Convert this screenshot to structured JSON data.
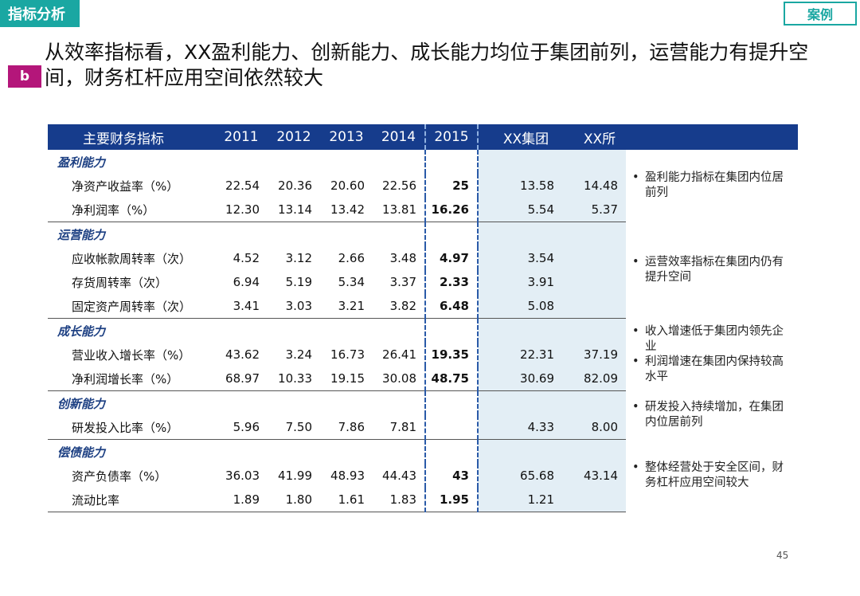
{
  "tag": "指标分析",
  "case_label": "案例",
  "badge": "b",
  "headline": "从效率指标看，XX盈利能力、创新能力、成长能力均位于集团前列，运营能力有提升空间，财务杠杆应用空间依然较大",
  "table": {
    "headers": [
      "主要财务指标",
      "2011",
      "2012",
      "2013",
      "2014",
      "2015",
      "XX集团",
      "XX所"
    ],
    "sections": [
      {
        "title": "盈利能力",
        "rows": [
          {
            "label": "净资产收益率（%）",
            "v2011": "22.54",
            "v2012": "20.36",
            "v2013": "20.60",
            "v2014": "22.56",
            "v2015": "25",
            "group": "13.58",
            "inst": "14.48"
          },
          {
            "label": "净利润率（%）",
            "v2011": "12.30",
            "v2012": "13.14",
            "v2013": "13.42",
            "v2014": "13.81",
            "v2015": "16.26",
            "group": "5.54",
            "inst": "5.37"
          }
        ],
        "notes": [
          "盈利能力指标在集团内位居前列"
        ]
      },
      {
        "title": "运营能力",
        "rows": [
          {
            "label": "应收帐款周转率（次）",
            "v2011": "4.52",
            "v2012": "3.12",
            "v2013": "2.66",
            "v2014": "3.48",
            "v2015": "4.97",
            "group": "3.54",
            "inst": ""
          },
          {
            "label": "存货周转率（次）",
            "v2011": "6.94",
            "v2012": "5.19",
            "v2013": "5.34",
            "v2014": "3.37",
            "v2015": "2.33",
            "group": "3.91",
            "inst": ""
          },
          {
            "label": "固定资产周转率（次）",
            "v2011": "3.41",
            "v2012": "3.03",
            "v2013": "3.21",
            "v2014": "3.82",
            "v2015": "6.48",
            "group": "5.08",
            "inst": ""
          }
        ],
        "notes": [
          "运营效率指标在集团内仍有提升空间"
        ]
      },
      {
        "title": "成长能力",
        "rows": [
          {
            "label": "营业收入增长率（%）",
            "v2011": "43.62",
            "v2012": "3.24",
            "v2013": "16.73",
            "v2014": "26.41",
            "v2015": "19.35",
            "group": "22.31",
            "inst": "37.19"
          },
          {
            "label": "净利润增长率（%）",
            "v2011": "68.97",
            "v2012": "10.33",
            "v2013": "19.15",
            "v2014": "30.08",
            "v2015": "48.75",
            "group": "30.69",
            "inst": "82.09"
          }
        ],
        "notes": [
          "收入增速低于集团内领先企业",
          "利润增速在集团内保持较高水平"
        ]
      },
      {
        "title": "创新能力",
        "rows": [
          {
            "label": "研发投入比率（%）",
            "v2011": "5.96",
            "v2012": "7.50",
            "v2013": "7.86",
            "v2014": "7.81",
            "v2015": "",
            "group": "4.33",
            "inst": "8.00"
          }
        ],
        "notes": [
          "研发投入持续增加，在集团内位居前列"
        ]
      },
      {
        "title": "偿债能力",
        "rows": [
          {
            "label": "资产负债率（%）",
            "v2011": "36.03",
            "v2012": "41.99",
            "v2013": "48.93",
            "v2014": "44.43",
            "v2015": "43",
            "group": "65.68",
            "inst": "43.14"
          },
          {
            "label": "流动比率",
            "v2011": "1.89",
            "v2012": "1.80",
            "v2013": "1.61",
            "v2014": "1.83",
            "v2015": "1.95",
            "group": "1.21",
            "inst": ""
          }
        ],
        "notes": [
          "整体经营处于安全区间，财务杠杆应用空间较大"
        ]
      }
    ]
  },
  "colors": {
    "teal": "#1aa7a2",
    "navy": "#163c8c",
    "magenta": "#b4167a",
    "shade": "#e3eef5"
  },
  "page_number": "45"
}
